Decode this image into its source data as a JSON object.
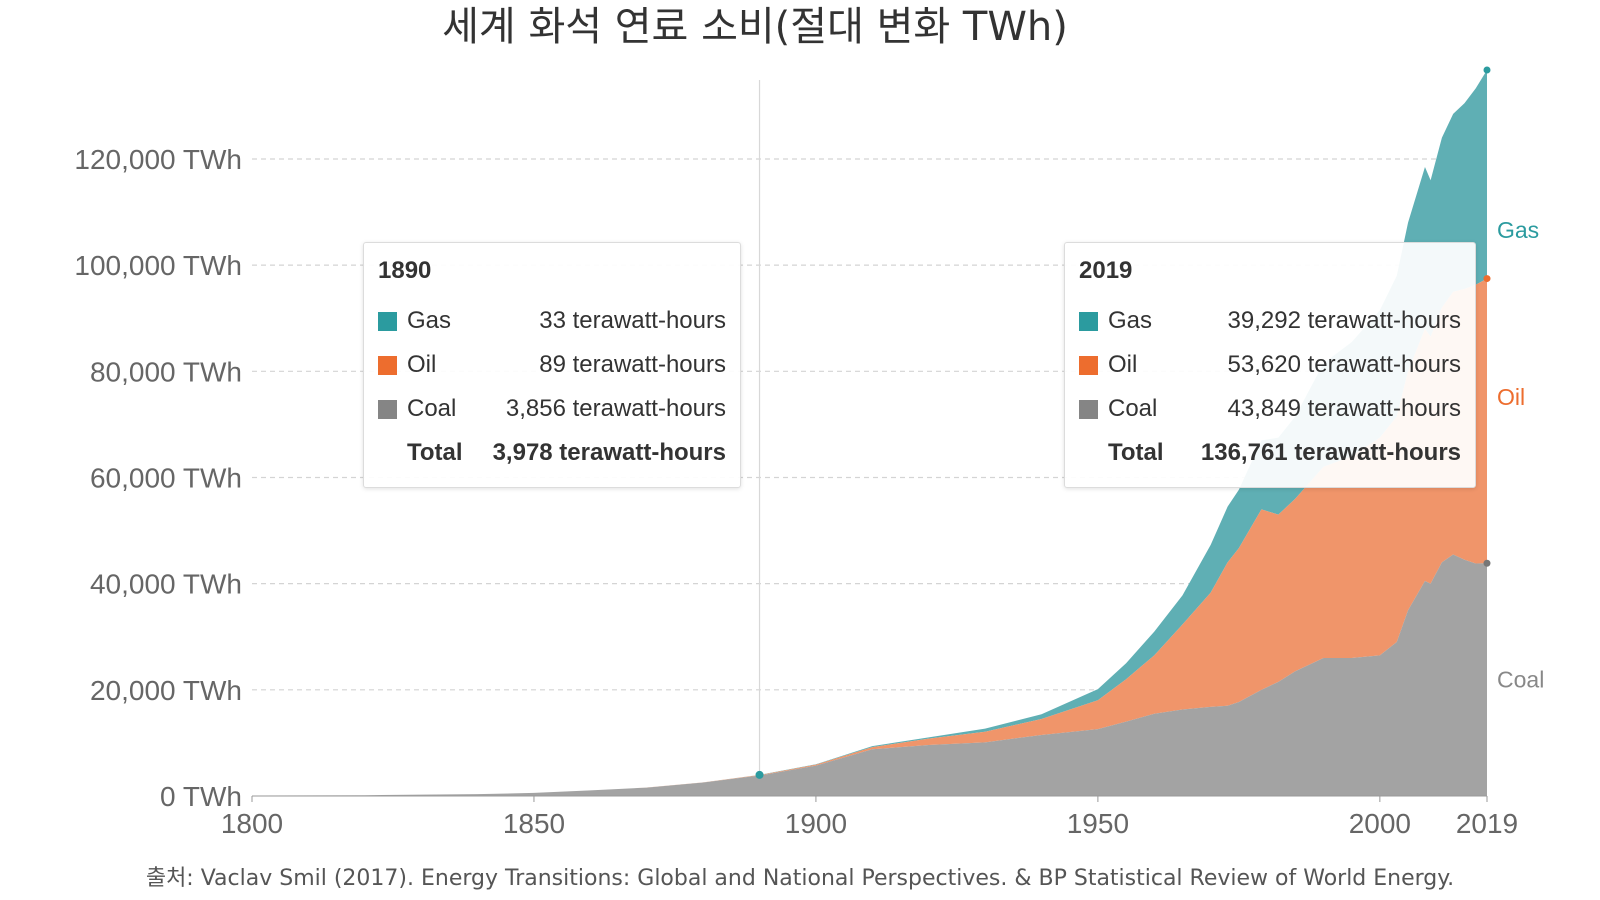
{
  "title": "세계 화석 연료 소비(절대 변화 TWh)",
  "source": "출처: Vaclav Smil (2017). Energy Transitions: Global and National Perspectives. & BP Statistical Review of World Energy.",
  "colors": {
    "gas": "#5fafb4",
    "oil": "#f0956a",
    "coal": "#a3a3a3",
    "gas_label": "#2b9b9f",
    "oil_label": "#ed6d2e",
    "coal_label": "#888888"
  },
  "chart_data": {
    "type": "area",
    "stacked": true,
    "title": "세계 화석 연료 소비(절대 변화 TWh)",
    "xlim": [
      1800,
      2019
    ],
    "ylim": [
      0,
      136761
    ],
    "x_ticks": [
      "1800",
      "1850",
      "1900",
      "1950",
      "2000",
      "2019"
    ],
    "y_ticks": [
      {
        "value": 0,
        "label": "0 TWh"
      },
      {
        "value": 20000,
        "label": "20,000 TWh"
      },
      {
        "value": 40000,
        "label": "40,000 TWh"
      },
      {
        "value": 60000,
        "label": "60,000 TWh"
      },
      {
        "value": 80000,
        "label": "80,000 TWh"
      },
      {
        "value": 100000,
        "label": "100,000 TWh"
      },
      {
        "value": 120000,
        "label": "120,000 TWh"
      }
    ],
    "grid": true,
    "x": [
      1800,
      1810,
      1820,
      1830,
      1840,
      1850,
      1860,
      1870,
      1880,
      1890,
      1900,
      1910,
      1920,
      1930,
      1940,
      1950,
      1955,
      1960,
      1965,
      1970,
      1973,
      1975,
      1979,
      1982,
      1985,
      1990,
      1995,
      2000,
      2003,
      2005,
      2008,
      2009,
      2011,
      2013,
      2015,
      2017,
      2019
    ],
    "series": [
      {
        "name": "Coal",
        "values": [
          97,
          128,
          153,
          264,
          356,
          579,
          1060,
          1589,
          2539,
          3856,
          5728,
          8800,
          9600,
          10100,
          11500,
          12600,
          14000,
          15500,
          16300,
          16800,
          17000,
          17700,
          20000,
          21500,
          23500,
          26000,
          26000,
          26500,
          29000,
          35000,
          40500,
          40000,
          44000,
          45500,
          44500,
          43800,
          43849
        ]
      },
      {
        "name": "Oil",
        "values": [
          0,
          0,
          0,
          0,
          0,
          0,
          0,
          6,
          32,
          89,
          181,
          400,
          1200,
          2000,
          3000,
          5444,
          8000,
          11000,
          16000,
          21500,
          27000,
          29000,
          34000,
          31500,
          32500,
          36000,
          38000,
          41000,
          42500,
          45000,
          47500,
          46500,
          48000,
          49500,
          51000,
          52500,
          53620
        ]
      },
      {
        "name": "Gas",
        "values": [
          0,
          0,
          0,
          0,
          0,
          0,
          0,
          0,
          0,
          33,
          64,
          200,
          250,
          600,
          900,
          2092,
          3000,
          4470,
          5500,
          9000,
          10500,
          11000,
          13000,
          14500,
          15500,
          19500,
          21500,
          24000,
          26500,
          28000,
          30500,
          29500,
          32000,
          33500,
          35000,
          37000,
          39292
        ]
      }
    ],
    "series_labels": [
      {
        "name": "Gas",
        "text": "Gas"
      },
      {
        "name": "Oil",
        "text": "Oil"
      },
      {
        "name": "Coal",
        "text": "Coal"
      }
    ],
    "annotation_year": 1890
  },
  "tooltip_1890": {
    "year": "1890",
    "gas_name": "Gas",
    "gas_value": "33 terawatt-hours",
    "oil_name": "Oil",
    "oil_value": "89 terawatt-hours",
    "coal_name": "Coal",
    "coal_value": "3,856 terawatt-hours",
    "total_name": "Total",
    "total_value": "3,978 terawatt-hours"
  },
  "tooltip_2019": {
    "year": "2019",
    "gas_name": "Gas",
    "gas_value": "39,292 terawatt-hours",
    "oil_name": "Oil",
    "oil_value": "53,620 terawatt-hours",
    "coal_name": "Coal",
    "coal_value": "43,849 terawatt-hours",
    "total_name": "Total",
    "total_value": "136,761 terawatt-hours"
  }
}
